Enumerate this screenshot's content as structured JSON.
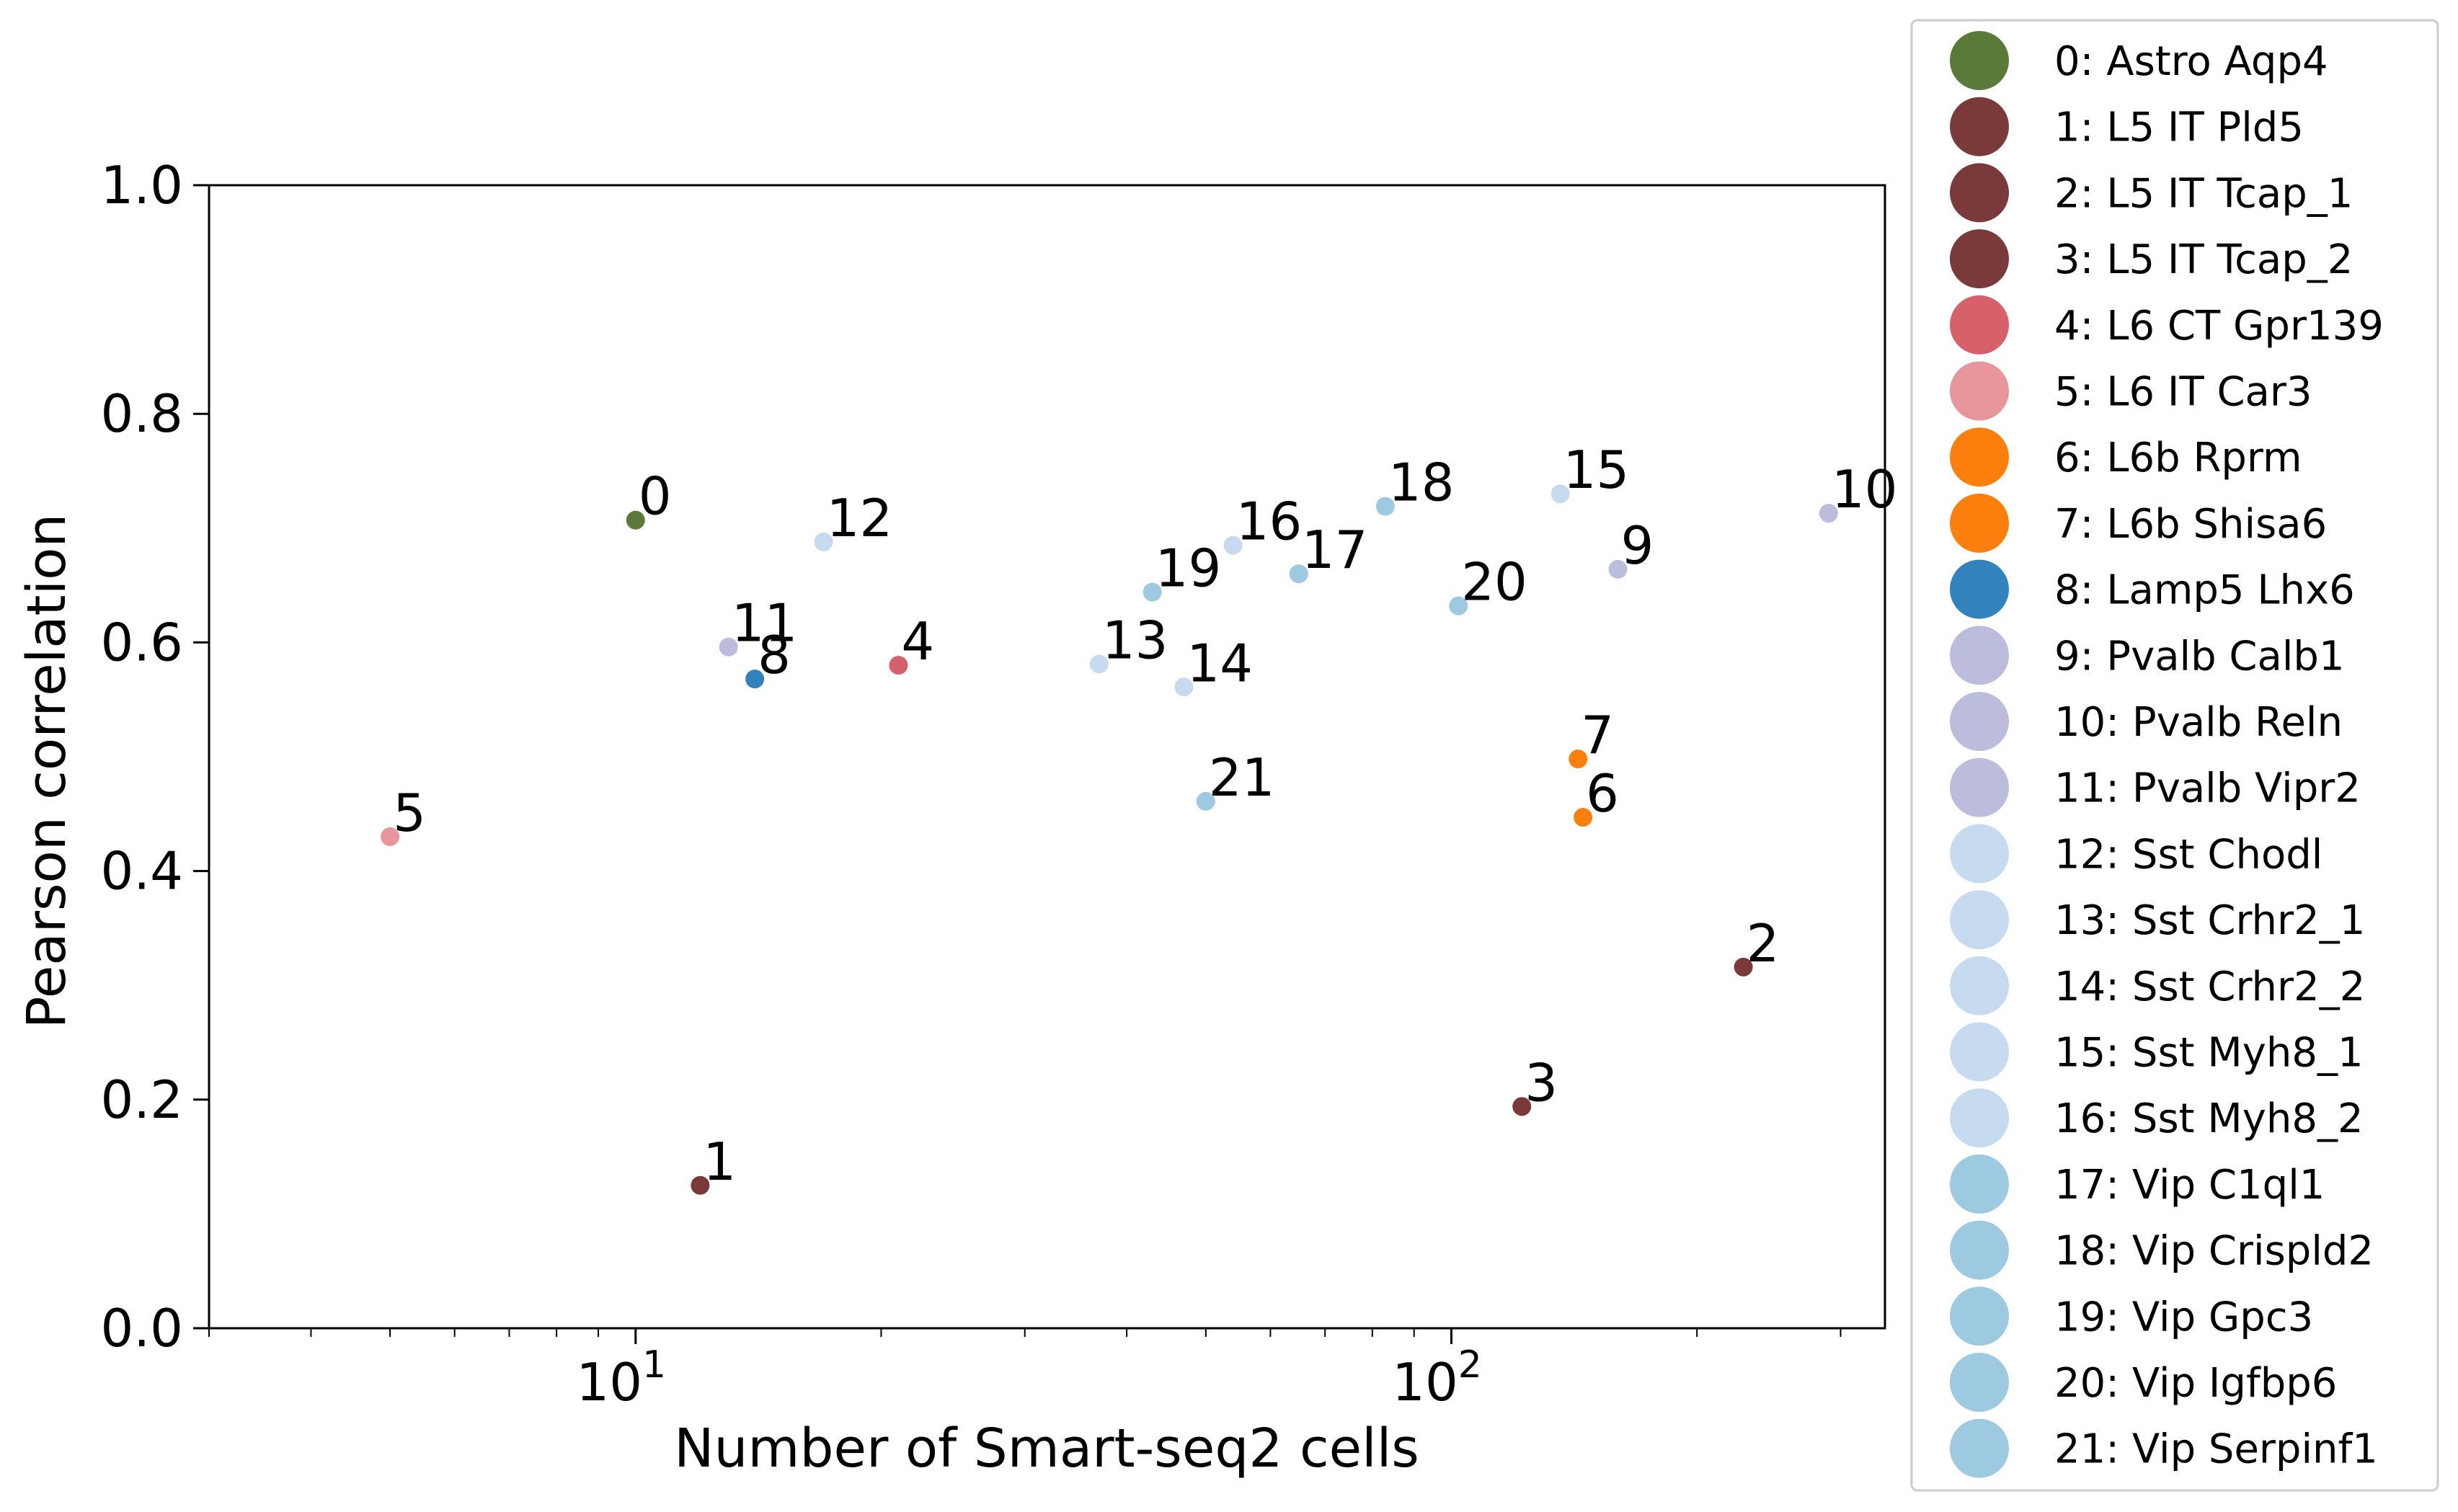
{
  "chart_data": {
    "type": "scatter",
    "title": "",
    "xlabel": "Number of Smart-seq2 cells",
    "ylabel": "Pearson correlation",
    "xscale": "log",
    "xlim": [
      3,
      340
    ],
    "ylim": [
      0.0,
      1.0
    ],
    "x_ticks": [
      {
        "base": "10",
        "exp": "1",
        "value": 10
      },
      {
        "base": "10",
        "exp": "2",
        "value": 100
      }
    ],
    "y_ticks": [
      "0.0",
      "0.2",
      "0.4",
      "0.6",
      "0.8",
      "1.0"
    ],
    "grid": false,
    "legend_position": "outside-right",
    "points": [
      {
        "id": "0",
        "x": 10,
        "y": 0.707,
        "legend": "0: Astro Aqp4",
        "color": "#5a7a3a"
      },
      {
        "id": "1",
        "x": 12,
        "y": 0.125,
        "legend": "1: L5 IT Pld5",
        "color": "#7b3a3a"
      },
      {
        "id": "2",
        "x": 228,
        "y": 0.316,
        "legend": "2: L5 IT Tcap_1",
        "color": "#7b3a3a"
      },
      {
        "id": "3",
        "x": 122,
        "y": 0.194,
        "legend": "3: L5 IT Tcap_2",
        "color": "#7b3a3a"
      },
      {
        "id": "4",
        "x": 21,
        "y": 0.58,
        "legend": "4: L6 CT Gpr139",
        "color": "#d6616b"
      },
      {
        "id": "5",
        "x": 5,
        "y": 0.43,
        "legend": "5: L6 IT Car3",
        "color": "#e7969c"
      },
      {
        "id": "6",
        "x": 145,
        "y": 0.447,
        "legend": "6: L6b Rprm",
        "color": "#fd7f0e"
      },
      {
        "id": "7",
        "x": 143,
        "y": 0.498,
        "legend": "7: L6b Shisa6",
        "color": "#fd7f0e"
      },
      {
        "id": "8",
        "x": 14,
        "y": 0.568,
        "legend": "8: Lamp5 Lhx6",
        "color": "#3182bd"
      },
      {
        "id": "9",
        "x": 160,
        "y": 0.664,
        "legend": "9: Pvalb Calb1",
        "color": "#bcbddc"
      },
      {
        "id": "10",
        "x": 290,
        "y": 0.713,
        "legend": "10: Pvalb Reln",
        "color": "#bcbddc"
      },
      {
        "id": "11",
        "x": 13,
        "y": 0.596,
        "legend": "11: Pvalb Vipr2",
        "color": "#bcbddc"
      },
      {
        "id": "12",
        "x": 17,
        "y": 0.688,
        "legend": "12: Sst Chodl",
        "color": "#c6dbef"
      },
      {
        "id": "13",
        "x": 37,
        "y": 0.581,
        "legend": "13: Sst Crhr2_1",
        "color": "#c6dbef"
      },
      {
        "id": "14",
        "x": 47,
        "y": 0.561,
        "legend": "14: Sst Crhr2_2",
        "color": "#c6dbef"
      },
      {
        "id": "15",
        "x": 136,
        "y": 0.73,
        "legend": "15: Sst Myh8_1",
        "color": "#c6dbef"
      },
      {
        "id": "16",
        "x": 54,
        "y": 0.685,
        "legend": "16: Sst Myh8_2",
        "color": "#c6dbef"
      },
      {
        "id": "17",
        "x": 65,
        "y": 0.66,
        "legend": "17: Vip C1ql1",
        "color": "#9ecae1"
      },
      {
        "id": "18",
        "x": 83,
        "y": 0.719,
        "legend": "18: Vip Crispld2",
        "color": "#9ecae1"
      },
      {
        "id": "19",
        "x": 43,
        "y": 0.644,
        "legend": "19: Vip Gpc3",
        "color": "#9ecae1"
      },
      {
        "id": "20",
        "x": 102,
        "y": 0.632,
        "legend": "20: Vip Igfbp6",
        "color": "#9ecae1"
      },
      {
        "id": "21",
        "x": 50,
        "y": 0.461,
        "legend": "21: Vip Serpinf1",
        "color": "#9ecae1"
      }
    ]
  }
}
